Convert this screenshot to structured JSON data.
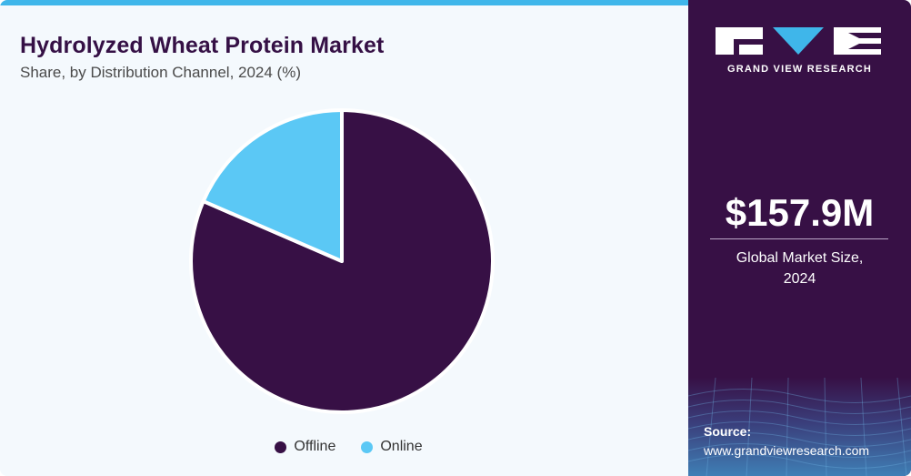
{
  "header": {
    "title": "Hydrolyzed Wheat Protein Market",
    "subtitle": "Share, by Distribution Channel, 2024 (%)"
  },
  "colors": {
    "offline": "#371045",
    "online": "#5bc8f5",
    "accent_bar": "#3fb6ea",
    "sidebar": "#371045"
  },
  "chart_data": {
    "type": "pie",
    "categories": [
      "Offline",
      "Online"
    ],
    "values": [
      81.5,
      18.5
    ],
    "colors": [
      "#371045",
      "#5bc8f5"
    ],
    "start": "12 o'clock",
    "direction": "clockwise",
    "legend_position": "bottom-center"
  },
  "sidebar": {
    "brand": "GRAND VIEW RESEARCH",
    "market_size": "$157.9M",
    "market_size_caption_line1": "Global Market Size,",
    "market_size_caption_line2": "2024",
    "source_label": "Source:",
    "source_url": "www.grandviewresearch.com"
  }
}
